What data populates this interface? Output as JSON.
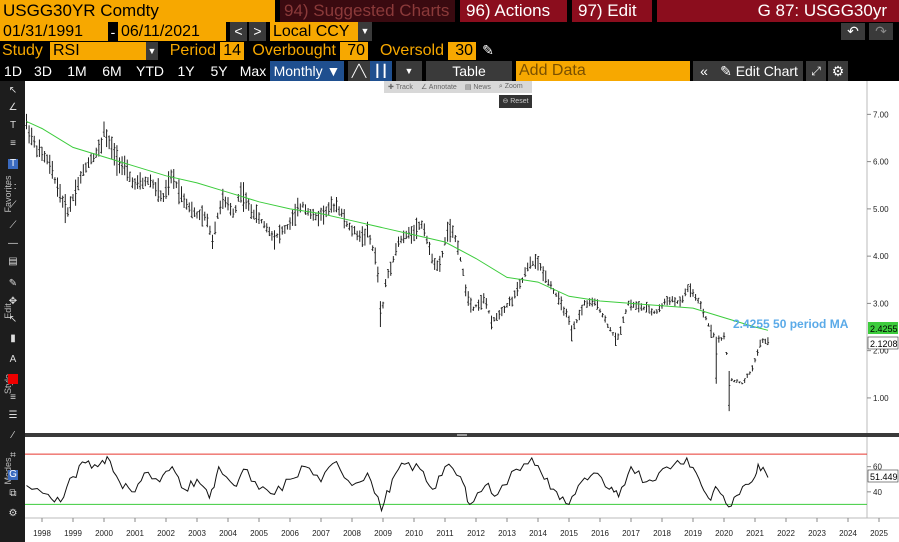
{
  "header": {
    "ticker": "USGG30YR Comdty",
    "suggested": "94) Suggested Charts",
    "actions": "96) Actions ▾",
    "edit": "97) Edit ▾",
    "title_right": "G 87: USGG30yr"
  },
  "dates": {
    "start": "01/31/1991",
    "end": "06/11/2021",
    "currency": "Local CCY"
  },
  "study": {
    "label": "Study",
    "name": "RSI",
    "period_label": "Period",
    "period": "14",
    "overbought_label": "Overbought",
    "overbought": "70",
    "oversold_label": "Oversold",
    "oversold": "30"
  },
  "ranges": [
    "1D",
    "3D",
    "1M",
    "6M",
    "YTD",
    "1Y",
    "5Y",
    "Max"
  ],
  "frequency": "Monthly ▼",
  "table_label": "Table",
  "add_data_placeholder": "Add Data",
  "edit_chart_label": "Edit Chart",
  "float_toolbar": [
    "Track",
    "Annotate",
    "News",
    "Zoom"
  ],
  "reset_label": "Reset",
  "sidebar_labels": [
    "Favorites",
    "Edit",
    "Style",
    "Modes"
  ],
  "colors": {
    "accent": "#f7a800",
    "ma_line": "#3ccc3c",
    "rsi_upper": "#e8362f",
    "rsi_lower": "#3ccc3c"
  },
  "chart_data": {
    "type": "line",
    "subtype": "ohlc-bars",
    "x_ticks": [
      "1998",
      "1999",
      "2000",
      "2001",
      "2002",
      "2003",
      "2004",
      "2005",
      "2006",
      "2007",
      "2008",
      "2009",
      "2010",
      "2011",
      "2012",
      "2013",
      "2014",
      "2015",
      "2016",
      "2017",
      "2018",
      "2019",
      "2020",
      "2021",
      "2022",
      "2023",
      "2024",
      "2025"
    ],
    "y_ticks": [
      "7.00",
      "6.00",
      "5.00",
      "4.00",
      "3.00",
      "2.00",
      "1.00"
    ],
    "ylim": [
      0.3,
      7.6
    ],
    "price_anchors": [
      [
        1997.5,
        6.8
      ],
      [
        1997.8,
        6.3
      ],
      [
        1998.2,
        6.0
      ],
      [
        1998.6,
        5.3
      ],
      [
        1998.8,
        4.9
      ],
      [
        1999.2,
        5.6
      ],
      [
        1999.5,
        6.0
      ],
      [
        1999.9,
        6.3
      ],
      [
        2000.0,
        6.6
      ],
      [
        2000.3,
        6.2
      ],
      [
        2000.7,
        5.8
      ],
      [
        2001.0,
        5.5
      ],
      [
        2001.5,
        5.6
      ],
      [
        2001.9,
        5.2
      ],
      [
        2002.2,
        5.7
      ],
      [
        2002.5,
        5.3
      ],
      [
        2002.9,
        4.9
      ],
      [
        2003.3,
        4.8
      ],
      [
        2003.5,
        4.4
      ],
      [
        2003.8,
        5.2
      ],
      [
        2004.2,
        4.9
      ],
      [
        2004.4,
        5.4
      ],
      [
        2004.7,
        5.0
      ],
      [
        2005.0,
        4.8
      ],
      [
        2005.5,
        4.4
      ],
      [
        2005.9,
        4.6
      ],
      [
        2006.4,
        5.1
      ],
      [
        2006.8,
        4.8
      ],
      [
        2007.3,
        5.0
      ],
      [
        2007.5,
        5.1
      ],
      [
        2007.9,
        4.6
      ],
      [
        2008.3,
        4.4
      ],
      [
        2008.5,
        4.5
      ],
      [
        2008.8,
        3.9
      ],
      [
        2008.95,
        2.7
      ],
      [
        2009.1,
        3.5
      ],
      [
        2009.5,
        4.3
      ],
      [
        2009.9,
        4.5
      ],
      [
        2010.3,
        4.7
      ],
      [
        2010.5,
        4.1
      ],
      [
        2010.8,
        3.7
      ],
      [
        2011.1,
        4.6
      ],
      [
        2011.4,
        4.3
      ],
      [
        2011.7,
        3.2
      ],
      [
        2011.9,
        2.9
      ],
      [
        2012.3,
        3.1
      ],
      [
        2012.5,
        2.6
      ],
      [
        2012.9,
        2.9
      ],
      [
        2013.2,
        3.1
      ],
      [
        2013.5,
        3.5
      ],
      [
        2013.7,
        3.8
      ],
      [
        2013.95,
        3.9
      ],
      [
        2014.4,
        3.4
      ],
      [
        2014.9,
        2.8
      ],
      [
        2015.1,
        2.4
      ],
      [
        2015.5,
        3.0
      ],
      [
        2015.9,
        3.0
      ],
      [
        2016.2,
        2.6
      ],
      [
        2016.55,
        2.2
      ],
      [
        2016.9,
        3.0
      ],
      [
        2017.4,
        2.9
      ],
      [
        2017.8,
        2.8
      ],
      [
        2018.2,
        3.1
      ],
      [
        2018.6,
        3.0
      ],
      [
        2018.85,
        3.35
      ],
      [
        2019.2,
        3.0
      ],
      [
        2019.6,
        2.4
      ],
      [
        2019.8,
        2.2
      ],
      [
        2020.0,
        2.3
      ],
      [
        2020.2,
        1.4
      ],
      [
        2020.6,
        1.3
      ],
      [
        2020.9,
        1.6
      ],
      [
        2021.2,
        2.2
      ],
      [
        2021.42,
        2.2
      ]
    ],
    "series": [
      {
        "name": "50 period MA",
        "last_value": "2.4255",
        "annotation": "2.4255 50 period MA",
        "points": [
          [
            1997.5,
            6.85
          ],
          [
            1998,
            6.7
          ],
          [
            1999,
            6.3
          ],
          [
            2000,
            6.1
          ],
          [
            2001,
            5.9
          ],
          [
            2002,
            5.7
          ],
          [
            2003,
            5.55
          ],
          [
            2004,
            5.35
          ],
          [
            2005,
            5.15
          ],
          [
            2006,
            5.0
          ],
          [
            2007,
            4.9
          ],
          [
            2008,
            4.75
          ],
          [
            2009,
            4.6
          ],
          [
            2010,
            4.45
          ],
          [
            2011,
            4.3
          ],
          [
            2012,
            3.95
          ],
          [
            2013,
            3.55
          ],
          [
            2014,
            3.45
          ],
          [
            2015,
            3.15
          ],
          [
            2016,
            3.05
          ],
          [
            2017,
            3.0
          ],
          [
            2018,
            2.95
          ],
          [
            2019,
            2.9
          ],
          [
            2020,
            2.7
          ],
          [
            2021,
            2.5
          ],
          [
            2021.42,
            2.43
          ]
        ]
      },
      {
        "name": "USGG30YR",
        "last_value": "2.1208"
      }
    ],
    "rsi": {
      "y_ticks": [
        "60",
        "40"
      ],
      "last_value": "51.449",
      "ylim": [
        20,
        82
      ],
      "overbought": 70,
      "oversold": 30,
      "points": [
        [
          1997.5,
          45
        ],
        [
          1998.2,
          38
        ],
        [
          1998.6,
          32
        ],
        [
          1999.0,
          52
        ],
        [
          1999.4,
          63
        ],
        [
          1999.8,
          60
        ],
        [
          2000.1,
          68
        ],
        [
          2000.5,
          48
        ],
        [
          2000.9,
          40
        ],
        [
          2001.3,
          55
        ],
        [
          2001.8,
          48
        ],
        [
          2002.2,
          60
        ],
        [
          2002.6,
          42
        ],
        [
          2003.0,
          50
        ],
        [
          2003.4,
          35
        ],
        [
          2003.7,
          60
        ],
        [
          2004.2,
          45
        ],
        [
          2004.5,
          58
        ],
        [
          2005.0,
          42
        ],
        [
          2005.5,
          38
        ],
        [
          2006.0,
          50
        ],
        [
          2006.5,
          60
        ],
        [
          2007.0,
          48
        ],
        [
          2007.5,
          64
        ],
        [
          2008.0,
          45
        ],
        [
          2008.5,
          55
        ],
        [
          2008.95,
          25
        ],
        [
          2009.3,
          50
        ],
        [
          2009.7,
          62
        ],
        [
          2010.2,
          58
        ],
        [
          2010.6,
          42
        ],
        [
          2011.0,
          60
        ],
        [
          2011.5,
          52
        ],
        [
          2011.8,
          30
        ],
        [
          2012.3,
          45
        ],
        [
          2012.7,
          38
        ],
        [
          2013.3,
          58
        ],
        [
          2013.8,
          67
        ],
        [
          2014.2,
          50
        ],
        [
          2014.6,
          40
        ],
        [
          2015.0,
          30
        ],
        [
          2015.4,
          48
        ],
        [
          2015.8,
          55
        ],
        [
          2016.3,
          42
        ],
        [
          2016.6,
          36
        ],
        [
          2017.0,
          60
        ],
        [
          2017.5,
          48
        ],
        [
          2017.9,
          55
        ],
        [
          2018.4,
          62
        ],
        [
          2018.8,
          67
        ],
        [
          2019.2,
          50
        ],
        [
          2019.5,
          35
        ],
        [
          2019.8,
          42
        ],
        [
          2020.15,
          28
        ],
        [
          2020.5,
          38
        ],
        [
          2020.9,
          48
        ],
        [
          2021.1,
          62
        ],
        [
          2021.42,
          51.4
        ]
      ]
    }
  }
}
